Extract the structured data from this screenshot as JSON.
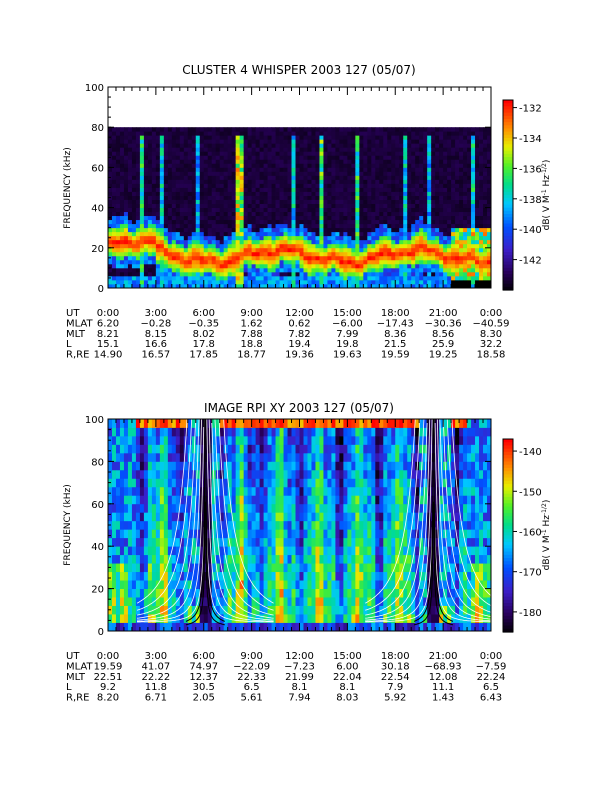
{
  "chart_data": [
    {
      "type": "heatmap",
      "title": "CLUSTER 4 WHISPER 2003 127 (05/07)",
      "ylabel": "FREQUENCY (kHz)",
      "ylim": [
        0,
        100
      ],
      "yticks": [
        "0",
        "20",
        "40",
        "60",
        "80",
        "100"
      ],
      "xlim_hours": [
        0,
        24
      ],
      "data_ceiling_khz": 80,
      "colorbar": {
        "label": "dB( V M",
        "label_sup1": "-1",
        "label_mid": " Hz",
        "label_sup2": "-1/2",
        "label_end": ")",
        "range": [
          -144,
          -131.5
        ],
        "ticks": [
          "-132",
          "-134",
          "-136",
          "-138",
          "-140",
          "-142"
        ]
      },
      "ephemeris": {
        "labels": [
          "UT",
          "MLAT",
          "MLT",
          "L",
          "R,RE"
        ],
        "UT": [
          "0:00",
          "3:00",
          "6:00",
          "9:00",
          "12:00",
          "15:00",
          "18:00",
          "21:00",
          "0:00"
        ],
        "MLAT": [
          "6.20",
          "−0.28",
          "−0.35",
          "1.62",
          "0.62",
          "−6.00",
          "−17.43",
          "−30.36",
          "−40.59"
        ],
        "MLT": [
          "8.21",
          "8.15",
          "8.02",
          "7.88",
          "7.82",
          "7.99",
          "8.36",
          "8.56",
          "8.30"
        ],
        "L": [
          "15.1",
          "16.6",
          "17.8",
          "18.8",
          "19.4",
          "19.8",
          "21.5",
          "25.9",
          "32.2"
        ],
        "R,RE": [
          "14.90",
          "16.57",
          "17.85",
          "18.77",
          "19.36",
          "19.63",
          "19.59",
          "19.25",
          "18.58"
        ]
      }
    },
    {
      "type": "heatmap",
      "title": "IMAGE RPI XY 2003 127 (05/07)",
      "ylabel": "FREQUENCY (kHz)",
      "ylim": [
        0,
        100
      ],
      "yticks": [
        "0",
        "20",
        "40",
        "60",
        "80",
        "100"
      ],
      "xlim_hours": [
        0,
        24
      ],
      "perigee_hours": [
        6.1,
        20.4
      ],
      "colorbar": {
        "label": "dB( V M",
        "label_sup1": "-1",
        "label_mid": " Hz",
        "label_sup2": "-1/2",
        "label_end": ")",
        "range": [
          -185,
          -137
        ],
        "ticks": [
          "-140",
          "-150",
          "-160",
          "-170",
          "-180"
        ]
      },
      "ephemeris": {
        "labels": [
          "UT",
          "MLAT",
          "MLT",
          "L",
          "R,RE"
        ],
        "UT": [
          "0:00",
          "3:00",
          "6:00",
          "9:00",
          "12:00",
          "15:00",
          "18:00",
          "21:00",
          "0:00"
        ],
        "MLAT": [
          "19.59",
          "41.07",
          "74.97",
          "−22.09",
          "−7.23",
          "6.00",
          "30.18",
          "−68.93",
          "−7.59"
        ],
        "MLT": [
          "22.51",
          "22.22",
          "12.37",
          "22.33",
          "21.99",
          "22.04",
          "22.54",
          "12.08",
          "22.24"
        ],
        "L": [
          "9.2",
          "11.8",
          "30.5",
          "6.5",
          "8.1",
          "8.1",
          "7.9",
          "11.1",
          "6.5"
        ],
        "R,RE": [
          "8.20",
          "6.71",
          "2.05",
          "5.61",
          "7.94",
          "8.03",
          "5.92",
          "1.43",
          "6.43"
        ]
      }
    }
  ]
}
